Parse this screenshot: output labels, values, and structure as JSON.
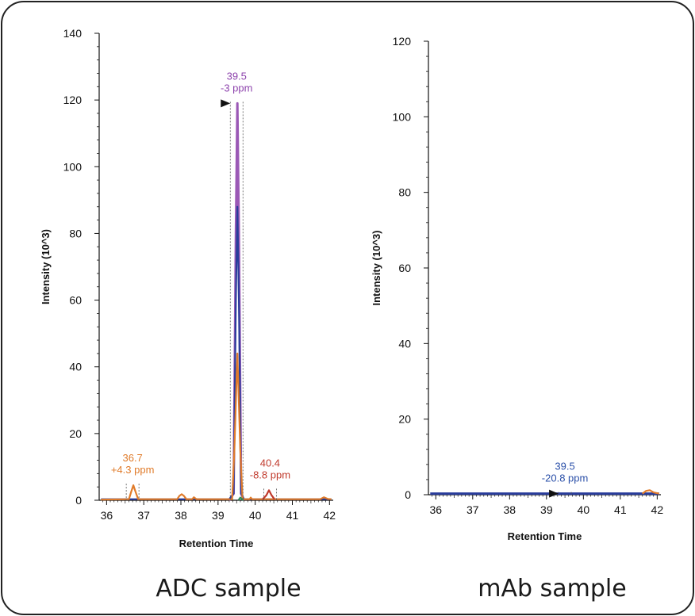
{
  "panels": [
    {
      "caption": "ADC sample",
      "chart_data": {
        "type": "line",
        "title": "",
        "xlabel": "Retention Time",
        "ylabel": "Intensity (10^3)",
        "xlim": [
          35.8,
          42.1
        ],
        "ylim": [
          0,
          140
        ],
        "x_ticks": [
          36,
          37,
          38,
          39,
          40,
          41,
          42
        ],
        "y_ticks": [
          0,
          20,
          40,
          60,
          80,
          100,
          120,
          140
        ],
        "grid": false,
        "series": [
          {
            "color": "#9b59b6",
            "points": [
              [
                39.3,
                0
              ],
              [
                39.42,
                2
              ],
              [
                39.48,
                80
              ],
              [
                39.52,
                119
              ],
              [
                39.56,
                80
              ],
              [
                39.62,
                2
              ],
              [
                39.7,
                0
              ]
            ]
          },
          {
            "color": "#2a3d9c",
            "points": [
              [
                35.85,
                0.3
              ],
              [
                39.3,
                0.3
              ],
              [
                39.42,
                2
              ],
              [
                39.48,
                60
              ],
              [
                39.52,
                88
              ],
              [
                39.56,
                60
              ],
              [
                39.62,
                2
              ],
              [
                39.7,
                0.3
              ],
              [
                42.05,
                0.3
              ]
            ]
          },
          {
            "color": "#e07b2a",
            "points": [
              [
                35.85,
                0.2
              ],
              [
                36.6,
                0.3
              ],
              [
                36.66,
                2.5
              ],
              [
                36.72,
                4.5
              ],
              [
                36.78,
                2.5
              ],
              [
                36.85,
                0.3
              ],
              [
                37.9,
                0.3
              ],
              [
                37.96,
                1.3
              ],
              [
                38.02,
                1.8
              ],
              [
                38.08,
                1.3
              ],
              [
                38.15,
                0.3
              ],
              [
                38.3,
                0.3
              ],
              [
                38.35,
                0.9
              ],
              [
                38.42,
                0.3
              ],
              [
                39.38,
                0.3
              ],
              [
                39.44,
                15
              ],
              [
                39.52,
                44
              ],
              [
                39.6,
                15
              ],
              [
                39.66,
                0.3
              ],
              [
                39.85,
                0.3
              ],
              [
                39.88,
                0.8
              ],
              [
                39.92,
                0.3
              ],
              [
                41.75,
                0.3
              ],
              [
                41.85,
                0.9
              ],
              [
                41.95,
                0.4
              ],
              [
                42.05,
                0.3
              ]
            ]
          },
          {
            "color": "#c0392b",
            "points": [
              [
                40.2,
                0.3
              ],
              [
                40.3,
                1.5
              ],
              [
                40.37,
                3
              ],
              [
                40.44,
                1.5
              ],
              [
                40.52,
                0.3
              ]
            ]
          },
          {
            "color": "#2e8b57",
            "points": [
              [
                39.55,
                0
              ],
              [
                39.6,
                0.8
              ],
              [
                39.68,
                0
              ]
            ]
          }
        ],
        "annotations": [
          {
            "line1": "39.5",
            "line2": "-3 ppm",
            "x": 39.5,
            "y": 119,
            "color": "#8e44ad"
          },
          {
            "line1": "36.7",
            "line2": "+4.3 ppm",
            "x": 36.7,
            "y": 4.5,
            "color": "#e07b2a"
          },
          {
            "line1": "40.4",
            "line2": "-8.8 ppm",
            "x": 40.4,
            "y": 3,
            "color": "#c0392b"
          }
        ]
      }
    },
    {
      "caption": "mAb sample",
      "chart_data": {
        "type": "line",
        "title": "",
        "xlabel": "Retention Time",
        "ylabel": "Intensity (10^3)",
        "xlim": [
          35.8,
          42.1
        ],
        "ylim": [
          0,
          120
        ],
        "x_ticks": [
          36,
          37,
          38,
          39,
          40,
          41,
          42
        ],
        "y_ticks": [
          0,
          20,
          40,
          60,
          80,
          100,
          120
        ],
        "grid": false,
        "series": [
          {
            "color": "#2a3d9c",
            "points": [
              [
                35.85,
                0.3
              ],
              [
                42.05,
                0.3
              ]
            ]
          },
          {
            "color": "#e07b2a",
            "points": [
              [
                41.6,
                0.3
              ],
              [
                41.7,
                1
              ],
              [
                41.8,
                1.2
              ],
              [
                41.9,
                0.6
              ],
              [
                42.05,
                0.3
              ]
            ]
          }
        ],
        "annotations": [
          {
            "line1": "39.5",
            "line2": "-20.8 ppm",
            "x": 39.5,
            "y": 0.3,
            "color": "#2a4fa8"
          }
        ]
      }
    }
  ]
}
